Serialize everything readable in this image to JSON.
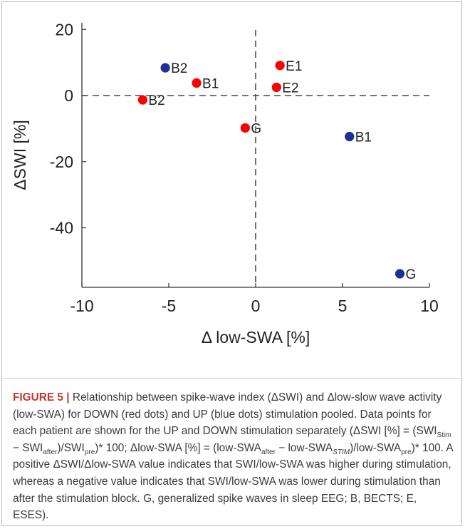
{
  "chart_data": {
    "type": "scatter",
    "xlabel": "Δ low-SWA [%]",
    "ylabel": "ΔSWI [%]",
    "xlim": [
      -10,
      10
    ],
    "ylim": [
      -58,
      22
    ],
    "xticks": [
      "-10",
      "-5",
      "0",
      "5",
      "10"
    ],
    "yticks": [
      "20",
      "0",
      "-20",
      "-40"
    ],
    "grid": false,
    "reference_lines": {
      "x": 0,
      "y": 0,
      "style": "dashed"
    },
    "series": [
      {
        "color": "#ff0000",
        "points": [
          {
            "x": 1.4,
            "y": 9.1,
            "label": "E1"
          },
          {
            "x": 1.2,
            "y": 2.5,
            "label": "E2"
          },
          {
            "x": -3.4,
            "y": 3.8,
            "label": "B1"
          },
          {
            "x": -6.5,
            "y": -1.3,
            "label": "B2"
          },
          {
            "x": -0.6,
            "y": -9.8,
            "label": "G"
          }
        ]
      },
      {
        "color": "#1f2f9a",
        "points": [
          {
            "x": -5.2,
            "y": 8.4,
            "label": "B2"
          },
          {
            "x": 5.4,
            "y": -12.4,
            "label": "B1"
          },
          {
            "x": 8.3,
            "y": -53.9,
            "label": "G"
          }
        ]
      }
    ]
  },
  "caption": {
    "label": "FIGURE 5",
    "separator": "|",
    "s1": " Relationship between spike-wave index (ΔSWI) and Δlow-slow wave activity (low-SWA) for DOWN (red dots) and UP (blue dots) stimulation pooled. Data points for each patient are shown for the UP and DOWN stimulation separately (ΔSWI [%] = (SWI",
    "sub1": "Stim",
    "s2": " − SWI",
    "sub2": "after",
    "s3": ")/SWI",
    "sub3": "pre",
    "s4": ")* 100; Δlow-SWA [%] = (low-SWA",
    "sub4": "after",
    "s5": " − low-SWA",
    "sub5": "STIM",
    "s6": ")/low-SWA",
    "sub6": "pre",
    "s7": ")* 100. A positive ΔSWI/Δlow-SWA value indicates that SWI/low-SWA was higher during stimulation, whereas a negative value indicates that SWI/low-SWA was lower during stimulation than after the stimulation block. G, generalized spike waves in sleep EEG; B, BECTS; E, ESES)."
  }
}
